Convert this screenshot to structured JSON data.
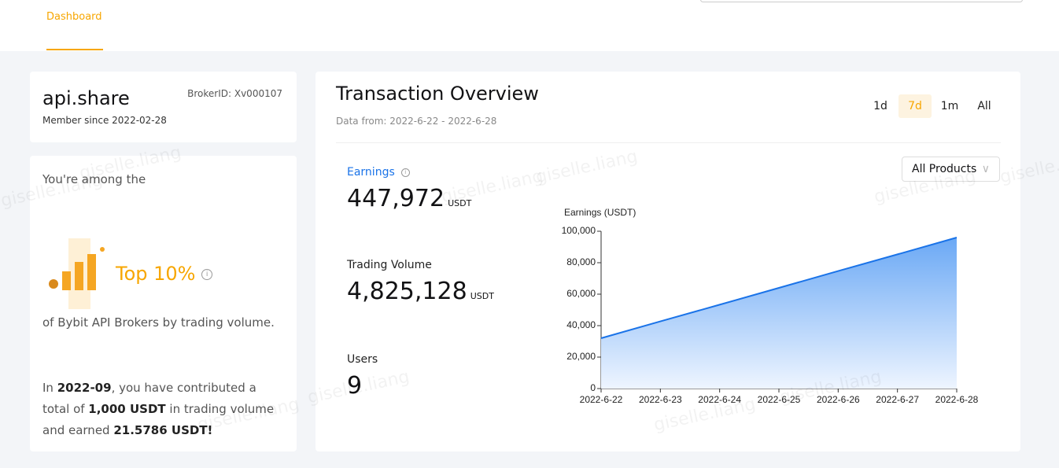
{
  "nav": {
    "tab": "Dashboard"
  },
  "profile": {
    "name": "api.share",
    "broker_id": "BrokerID: Xv000107",
    "member_since": "Member since 2022-02-28"
  },
  "rank": {
    "intro": "You're among the",
    "rank": "Top 10%",
    "description": "of Bybit API Brokers by trading volume.",
    "contribution": [
      "In ",
      "2022-09",
      ", you have contributed a total of ",
      "1,000 USDT",
      " in trading volume and earned ",
      "21.5786 USDT!"
    ]
  },
  "overview": {
    "title": "Transaction Overview",
    "data_from": "Data from: 2022-6-22 - 2022-6-28",
    "ranges": [
      "1d",
      "7d",
      "1m",
      "All"
    ],
    "selected_range": 1,
    "product_filter": "All Products",
    "metrics": [
      {
        "label": "Earnings",
        "value": "447,972",
        "unit": "USDT"
      },
      {
        "label": "Trading Volume",
        "value": "4,825,128",
        "unit": "USDT"
      },
      {
        "label": "Users",
        "value": "9"
      }
    ]
  },
  "watermark": "giselle.liang",
  "chart_data": {
    "type": "area",
    "y_label": "Earnings (USDT)",
    "categories": [
      "2022-6-22",
      "2022-6-23",
      "2022-6-24",
      "2022-6-25",
      "2022-6-26",
      "2022-6-27",
      "2022-6-28"
    ],
    "values": [
      32000,
      42700,
      53300,
      64000,
      74700,
      85300,
      96000
    ],
    "color": "#1a73e8",
    "ylim": [
      0,
      100000
    ],
    "yticks": [
      0,
      {
        "value": 20000,
        "label": "20,000"
      },
      {
        "value": 40000,
        "label": "40,000"
      },
      {
        "value": 60000,
        "label": "60,000"
      },
      {
        "value": 80000,
        "label": "80,000"
      },
      {
        "value": 100000,
        "label": "100,000"
      }
    ]
  }
}
